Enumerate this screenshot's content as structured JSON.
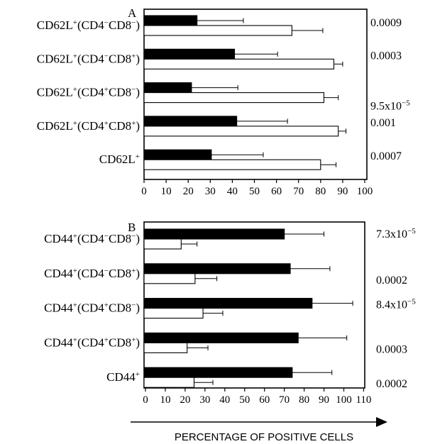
{
  "chart_data": [
    {
      "type": "bar",
      "panel": "A",
      "categories": [
        "CD62L+(CD4−CD8−)",
        "CD62L+(CD4−CD8+)",
        "CD62L+(CD4+CD8−)",
        "CD62L+(CD4+CD8+)",
        "CD62L+"
      ],
      "series": [
        {
          "color": "#000000",
          "values": [
            24,
            41,
            21.5,
            42,
            30.5
          ],
          "errors": [
            21,
            19.5,
            21,
            23,
            23.5
          ]
        },
        {
          "color": "#ffffff",
          "values": [
            67,
            86,
            81.5,
            88,
            80
          ],
          "errors": [
            14,
            4,
            6.5,
            3.5,
            7
          ]
        }
      ],
      "pvalues": [
        "0.0009",
        "0.0003",
        "9.5x10−5",
        "0.001",
        "0.0007"
      ],
      "xlim": [
        0,
        100
      ],
      "xticks": [
        "0",
        "10",
        "20",
        "30",
        "40",
        "50",
        "60",
        "70",
        "80",
        "90",
        "100"
      ]
    },
    {
      "type": "bar",
      "panel": "B",
      "categories": [
        "CD44+(CD4−CD8−)",
        "CD44+(CD4−CD8+)",
        "CD44+(CD4+CD8−)",
        "CD44+(CD4+CD8+)",
        "CD44+"
      ],
      "series": [
        {
          "color": "#000000",
          "values": [
            70,
            73,
            84,
            77,
            74
          ],
          "errors": [
            20,
            20,
            20.5,
            24.5,
            20
          ]
        },
        {
          "color": "#ffffff",
          "values": [
            18,
            25,
            29,
            21,
            24.5
          ],
          "errors": [
            8,
            11,
            10,
            10.5,
            9.5
          ]
        }
      ],
      "pvalues": [
        "7.3x10−5",
        "0.0002",
        "8.4x10−5",
        "0.0003",
        "0.0002"
      ],
      "xlim": [
        0,
        110
      ],
      "xticks": [
        "0",
        "10",
        "20",
        "30",
        "40",
        "50",
        "60",
        "70",
        "80",
        "90",
        "100",
        "110"
      ]
    }
  ],
  "xlabel": "PERCENTAGE OF POSITIVE CELLS"
}
